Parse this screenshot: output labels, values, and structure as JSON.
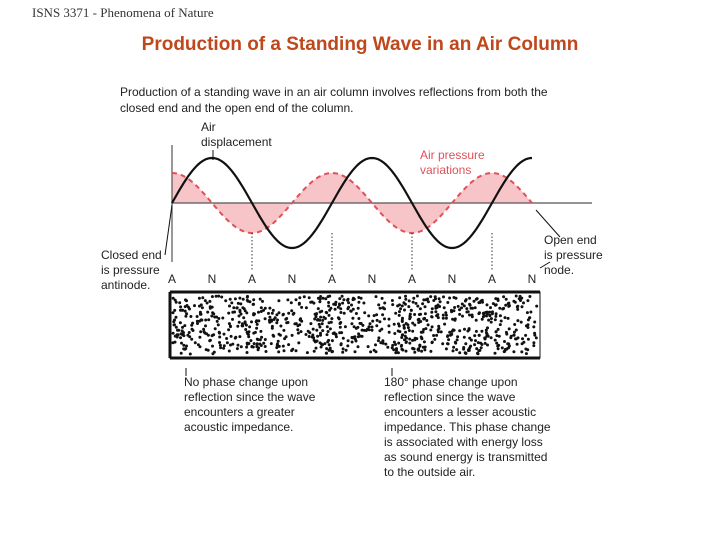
{
  "header": {
    "course": "ISNS 3371 - Phenomena of Nature",
    "title": "Production of a Standing Wave in an Air Column"
  },
  "diagram": {
    "intro": [
      "Production of a standing wave in an air column involves reflections from both the",
      "closed end and the open end of the column."
    ],
    "displacement_label": [
      "Air",
      "displacement"
    ],
    "pressure_label": [
      "Air pressure",
      "variations"
    ],
    "closed_end_label": [
      "Closed end",
      "is pressure",
      "antinode."
    ],
    "open_end_label": [
      "Open end",
      "is pressure",
      "node."
    ],
    "nodes": [
      "A",
      "N",
      "A",
      "N",
      "A",
      "N",
      "A",
      "N",
      "A",
      "N"
    ],
    "closed_caption": [
      "No phase change upon",
      "reflection since the wave",
      "encounters a greater",
      "acoustic impedance."
    ],
    "open_caption": [
      "180° phase change upon",
      "reflection since the wave",
      "encounters a lesser acoustic",
      "impedance. This phase change",
      "is associated with energy loss",
      "as sound energy is transmitted",
      "to the outside air."
    ]
  }
}
